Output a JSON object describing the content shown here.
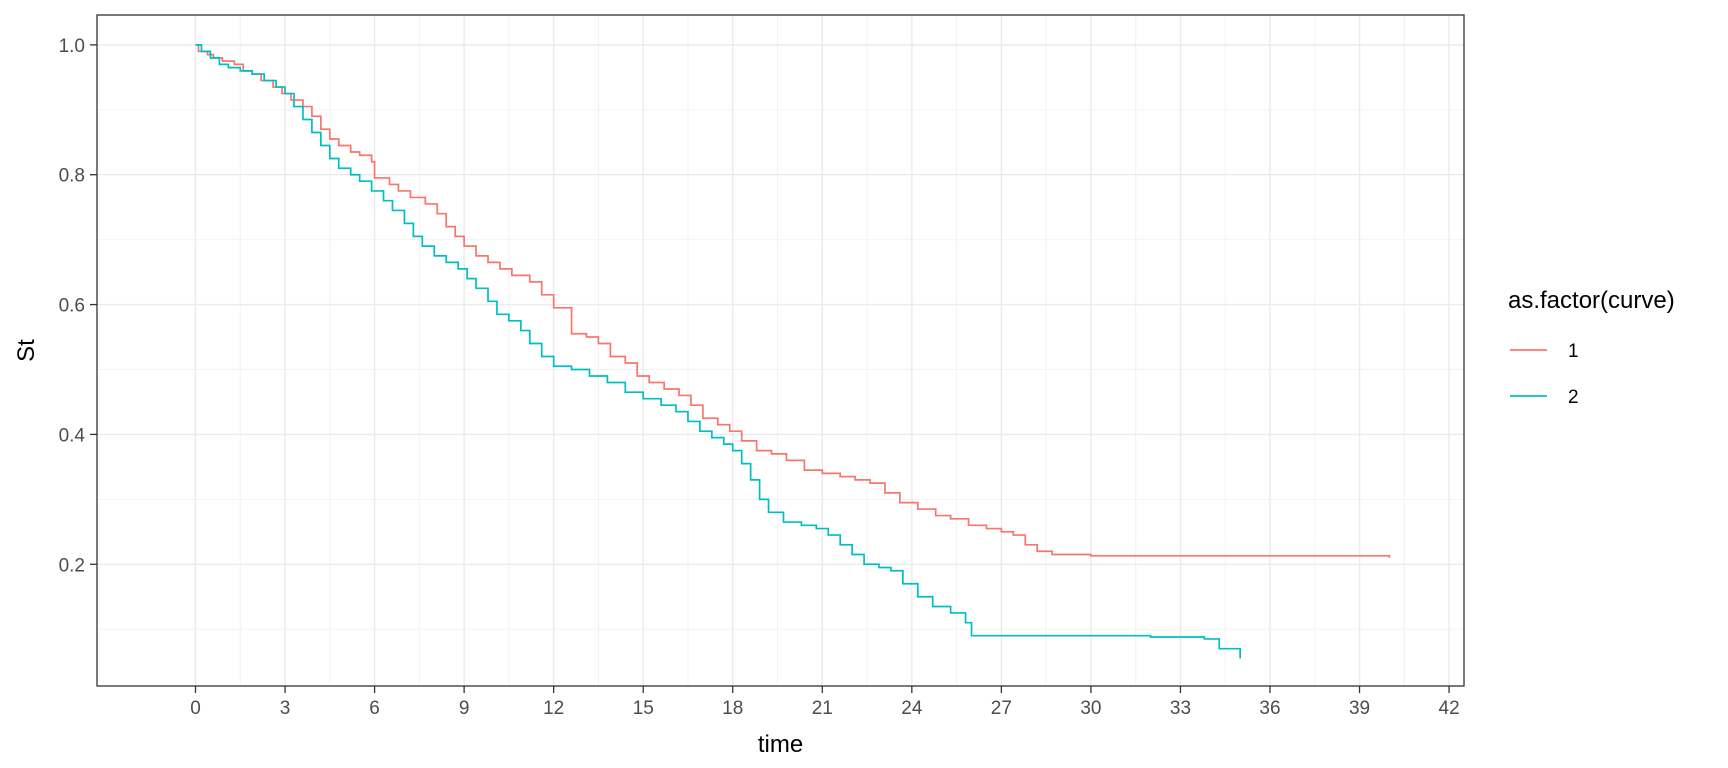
{
  "chart_data": {
    "type": "line",
    "step": true,
    "xlabel": "time",
    "ylabel": "St",
    "xlim": [
      -3.3,
      42.5
    ],
    "ylim": [
      0.0125,
      1.046
    ],
    "x_ticks": [
      0,
      3,
      6,
      9,
      12,
      15,
      18,
      21,
      24,
      27,
      30,
      33,
      36,
      39,
      42
    ],
    "y_ticks": [
      0.2,
      0.4,
      0.6,
      0.8,
      1.0
    ],
    "y_tick_labels": [
      "0.2",
      "0.4",
      "0.6",
      "0.8",
      "1.0"
    ],
    "grid": true,
    "legend": {
      "title": "as.factor(curve)",
      "position": "right"
    },
    "series": [
      {
        "name": "1",
        "color": "#F8766D",
        "x": [
          0,
          0.1,
          0.4,
          0.6,
          0.9,
          1.3,
          1.6,
          1.9,
          2.2,
          2.6,
          2.9,
          3.2,
          3.6,
          3.9,
          4.2,
          4.5,
          4.8,
          5.2,
          5.5,
          5.9,
          6.0,
          6.5,
          6.8,
          7.2,
          7.7,
          8.1,
          8.4,
          8.7,
          9.0,
          9.4,
          9.8,
          10.2,
          10.6,
          11.2,
          11.6,
          12.0,
          12.6,
          13.1,
          13.5,
          13.9,
          14.4,
          14.8,
          15.2,
          15.7,
          16.2,
          16.6,
          17.0,
          17.5,
          17.9,
          18.3,
          18.8,
          19.3,
          19.8,
          20.4,
          21.0,
          21.6,
          22.1,
          22.6,
          23.1,
          23.6,
          24.2,
          24.8,
          25.3,
          25.9,
          26.5,
          27.0,
          27.4,
          27.8,
          28.2,
          28.7,
          30.0,
          33.0,
          35.0,
          38.0,
          40.0
        ],
        "y": [
          1.0,
          0.99,
          0.985,
          0.98,
          0.975,
          0.97,
          0.96,
          0.955,
          0.945,
          0.935,
          0.925,
          0.915,
          0.905,
          0.89,
          0.87,
          0.855,
          0.845,
          0.835,
          0.83,
          0.82,
          0.795,
          0.785,
          0.775,
          0.765,
          0.755,
          0.74,
          0.72,
          0.705,
          0.69,
          0.675,
          0.665,
          0.655,
          0.645,
          0.635,
          0.615,
          0.595,
          0.555,
          0.55,
          0.54,
          0.52,
          0.51,
          0.49,
          0.48,
          0.47,
          0.46,
          0.445,
          0.425,
          0.415,
          0.405,
          0.39,
          0.375,
          0.37,
          0.36,
          0.345,
          0.34,
          0.335,
          0.33,
          0.325,
          0.31,
          0.295,
          0.285,
          0.275,
          0.27,
          0.26,
          0.255,
          0.25,
          0.245,
          0.23,
          0.22,
          0.215,
          0.213,
          0.213,
          0.213,
          0.213,
          0.21
        ]
      },
      {
        "name": "2",
        "color": "#00BFC4",
        "x": [
          0,
          0.2,
          0.5,
          0.8,
          1.1,
          1.5,
          1.9,
          2.3,
          2.7,
          3.0,
          3.3,
          3.6,
          3.9,
          4.2,
          4.5,
          4.8,
          5.2,
          5.5,
          5.9,
          6.3,
          6.6,
          7.0,
          7.3,
          7.6,
          8.0,
          8.4,
          8.8,
          9.1,
          9.4,
          9.8,
          10.1,
          10.5,
          10.9,
          11.2,
          11.6,
          12.0,
          12.6,
          13.2,
          13.8,
          14.4,
          15.0,
          15.6,
          16.1,
          16.5,
          16.9,
          17.3,
          17.7,
          18.0,
          18.3,
          18.6,
          18.9,
          19.2,
          19.7,
          20.3,
          20.8,
          21.2,
          21.6,
          22.0,
          22.4,
          22.9,
          23.3,
          23.7,
          24.2,
          24.7,
          25.3,
          25.8,
          26.0,
          28.0,
          30.0,
          32.0,
          33.8,
          34.3,
          35.0
        ],
        "y": [
          1.0,
          0.99,
          0.98,
          0.97,
          0.965,
          0.96,
          0.955,
          0.945,
          0.935,
          0.925,
          0.905,
          0.885,
          0.865,
          0.845,
          0.825,
          0.81,
          0.8,
          0.79,
          0.775,
          0.76,
          0.745,
          0.725,
          0.705,
          0.69,
          0.675,
          0.665,
          0.655,
          0.64,
          0.625,
          0.605,
          0.585,
          0.575,
          0.56,
          0.54,
          0.52,
          0.505,
          0.5,
          0.49,
          0.48,
          0.465,
          0.455,
          0.445,
          0.435,
          0.42,
          0.405,
          0.395,
          0.385,
          0.375,
          0.355,
          0.33,
          0.3,
          0.28,
          0.265,
          0.26,
          0.255,
          0.245,
          0.23,
          0.215,
          0.2,
          0.195,
          0.19,
          0.17,
          0.15,
          0.135,
          0.125,
          0.11,
          0.09,
          0.09,
          0.09,
          0.088,
          0.085,
          0.07,
          0.055
        ]
      }
    ]
  }
}
